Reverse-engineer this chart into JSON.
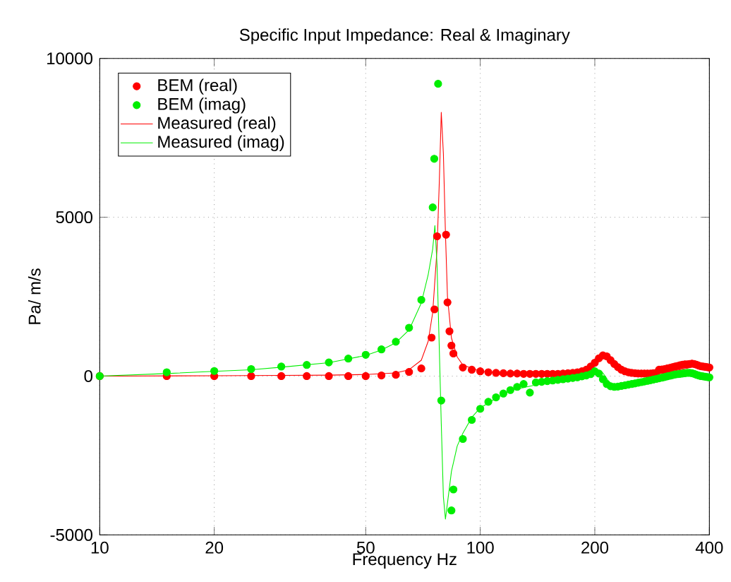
{
  "chart_data": {
    "type": "scatter",
    "title": "Specific Input Impedance: Real & Imaginary",
    "xlabel": "Frequency  Hz",
    "ylabel": "Pa/ m/s",
    "log": "x",
    "xlim": [
      10,
      400
    ],
    "xticks": [
      10,
      20,
      50,
      100,
      200,
      400
    ],
    "ylim": [
      -5000,
      10000
    ],
    "yticks": [
      -5000,
      0,
      5000,
      10000
    ],
    "grid": true,
    "legend": "top left",
    "series": [
      {
        "name": "BEM (real)",
        "marker": "circle",
        "color": "#ff0000",
        "x": [
          10,
          15,
          20,
          25,
          30,
          35,
          40,
          45,
          50,
          55,
          60,
          65,
          70,
          74.5,
          75.8,
          77,
          81.3,
          82,
          83,
          84,
          85,
          90,
          95,
          100,
          105,
          110,
          115,
          120,
          125,
          130,
          135,
          140,
          145,
          150,
          155,
          160,
          165,
          170,
          175,
          180,
          185,
          190,
          195,
          200,
          205,
          210,
          215,
          220,
          225,
          230,
          235,
          240,
          245,
          250,
          255,
          260,
          265,
          270,
          275,
          280,
          285,
          290,
          295,
          300,
          305,
          310,
          315,
          320,
          325,
          330,
          335,
          340,
          345,
          350,
          355,
          360,
          365,
          370,
          375,
          380,
          385,
          390,
          395,
          400
        ],
        "values": [
          0,
          0,
          0,
          0,
          0,
          0,
          0,
          0,
          0,
          20,
          40,
          130,
          240,
          1210,
          2100,
          4400,
          4450,
          2320,
          1410,
          960,
          710,
          270,
          200,
          150,
          120,
          100,
          90,
          80,
          80,
          70,
          70,
          70,
          70,
          70,
          70,
          70,
          80,
          90,
          100,
          120,
          150,
          200,
          300,
          420,
          560,
          650,
          620,
          500,
          380,
          280,
          200,
          150,
          120,
          100,
          90,
          80,
          80,
          80,
          80,
          80,
          90,
          100,
          200,
          210,
          220,
          240,
          260,
          280,
          300,
          320,
          340,
          360,
          370,
          370,
          380,
          390,
          380,
          360,
          330,
          310,
          300,
          290,
          280,
          270
        ]
      },
      {
        "name": "BEM (imag)",
        "marker": "circle",
        "color": "#00ee00",
        "x": [
          10,
          15,
          20,
          25,
          30,
          35,
          40,
          45,
          50,
          55,
          60,
          65,
          70,
          75,
          75.7,
          77.5,
          79,
          84,
          85,
          90,
          95,
          100,
          105,
          110,
          115,
          120,
          125,
          130,
          135,
          140,
          145,
          150,
          155,
          160,
          165,
          170,
          175,
          180,
          185,
          190,
          195,
          200,
          205,
          210,
          215,
          220,
          225,
          230,
          235,
          240,
          245,
          250,
          255,
          260,
          265,
          270,
          275,
          280,
          285,
          290,
          295,
          300,
          305,
          310,
          315,
          320,
          325,
          330,
          335,
          340,
          345,
          350,
          355,
          360,
          365,
          370,
          375,
          380,
          385,
          390,
          395,
          400
        ],
        "values": [
          0,
          120,
          160,
          220,
          300,
          350,
          430,
          550,
          670,
          840,
          1080,
          1520,
          2400,
          5310,
          6840,
          9200,
          -770,
          -4230,
          -3570,
          -1980,
          -1380,
          -1030,
          -810,
          -670,
          -550,
          -440,
          -340,
          -250,
          -520,
          -200,
          -180,
          -160,
          -140,
          -120,
          -100,
          -80,
          -60,
          -40,
          -10,
          20,
          60,
          150,
          80,
          -100,
          -250,
          -320,
          -340,
          -330,
          -310,
          -290,
          -270,
          -250,
          -230,
          -210,
          -190,
          -170,
          -150,
          -130,
          -110,
          -90,
          -70,
          -50,
          -30,
          -10,
          10,
          30,
          50,
          60,
          70,
          80,
          90,
          100,
          100,
          90,
          70,
          40,
          20,
          0,
          -10,
          -20,
          -30,
          -40
        ]
      },
      {
        "name": "Measured (real)",
        "type": "line",
        "marker": "none",
        "color": "#ff0000",
        "x": [
          10,
          20,
          30,
          40,
          50,
          60,
          65,
          70,
          73,
          75,
          77,
          78,
          79,
          80,
          81,
          82,
          84,
          87,
          90,
          100,
          120,
          150,
          180,
          200,
          212,
          225,
          250,
          300,
          350,
          380,
          400
        ],
        "values": [
          0,
          10,
          20,
          30,
          50,
          100,
          200,
          500,
          1100,
          2000,
          4000,
          6000,
          8300,
          7000,
          4500,
          2500,
          1200,
          600,
          350,
          150,
          80,
          80,
          150,
          350,
          650,
          400,
          100,
          80,
          250,
          350,
          300
        ]
      },
      {
        "name": "Measured (imag)",
        "type": "line",
        "marker": "none",
        "color": "#00ee00",
        "x": [
          10,
          15,
          20,
          25,
          30,
          40,
          50,
          55,
          60,
          65,
          70,
          73,
          75,
          76,
          77,
          78,
          79,
          80,
          81,
          82,
          84,
          87,
          90,
          95,
          100,
          110,
          120,
          150,
          180,
          200,
          210,
          220,
          240,
          300,
          360,
          400
        ],
        "values": [
          0,
          80,
          150,
          200,
          280,
          420,
          650,
          820,
          1050,
          1450,
          2300,
          3200,
          4000,
          4740,
          3500,
          1000,
          -1500,
          -3800,
          -4500,
          -4000,
          -3000,
          -2200,
          -1800,
          -1300,
          -1000,
          -700,
          -450,
          -200,
          50,
          200,
          100,
          -250,
          -300,
          -100,
          100,
          0
        ]
      }
    ]
  }
}
